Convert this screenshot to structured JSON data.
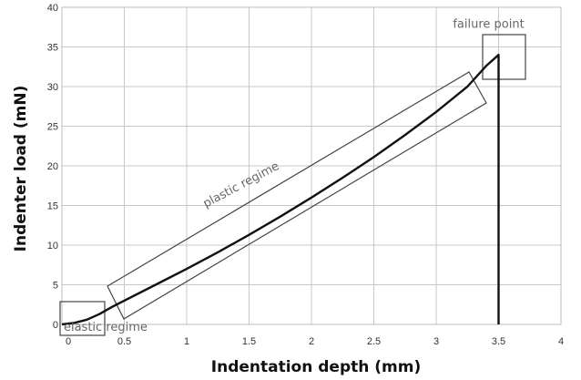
{
  "chart_data": {
    "type": "line",
    "xlabel": "Indentation depth (mm)",
    "ylabel": "Indenter load (mN)",
    "xlim": [
      0,
      4
    ],
    "ylim": [
      0,
      40
    ],
    "x_ticks": [
      "0",
      "0.5",
      "1",
      "1.5",
      "2",
      "2.5",
      "3",
      "3.5",
      "4"
    ],
    "y_ticks": [
      "0",
      "5",
      "10",
      "15",
      "20",
      "25",
      "30",
      "35",
      "40"
    ],
    "grid": true,
    "line_color": "#111111",
    "series": [
      {
        "x": [
          0,
          0.1,
          0.2,
          0.3,
          0.4,
          0.5,
          0.75,
          1.0,
          1.25,
          1.5,
          1.75,
          2.0,
          2.25,
          2.5,
          2.75,
          3.0,
          3.25,
          3.4,
          3.5,
          3.5
        ],
        "y": [
          0,
          0.2,
          0.6,
          1.3,
          2.2,
          3.0,
          5.0,
          7.0,
          9.1,
          11.3,
          13.6,
          16.0,
          18.5,
          21.1,
          23.9,
          26.8,
          30.0,
          32.6,
          34.0,
          0
        ]
      }
    ],
    "annotations": [
      {
        "text": "failure point",
        "x": 3.42,
        "y": 37.4
      },
      {
        "text": "plastic regime",
        "x": 1.45,
        "y": 17.2,
        "rotate": -28
      },
      {
        "text": "elastic regime",
        "x": 0.35,
        "y": -0.8
      }
    ]
  }
}
